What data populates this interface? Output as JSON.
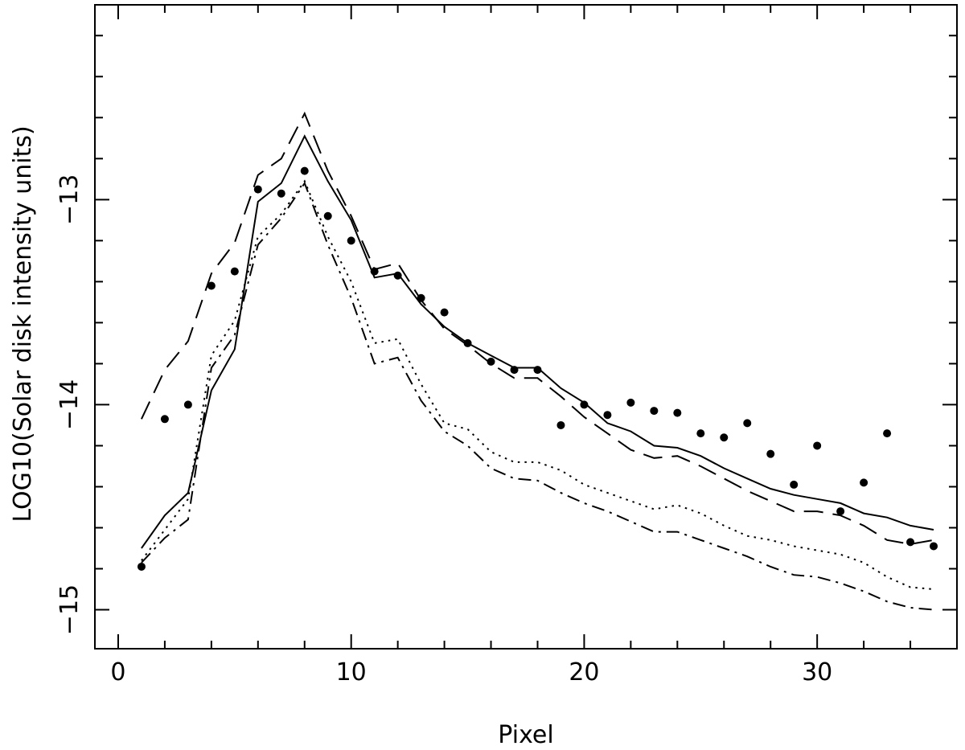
{
  "chart_data": {
    "type": "line",
    "title": "",
    "xlabel": "Pixel",
    "ylabel": "LOG10(Solar disk intensity units)",
    "xlim": [
      -1,
      36
    ],
    "ylim": [
      -15.19,
      -12.05
    ],
    "xticks": [
      0,
      10,
      20,
      30
    ],
    "xtick_labels": [
      "0",
      "10",
      "20",
      "30"
    ],
    "yticks": [
      -15,
      -14,
      -13
    ],
    "ytick_labels": [
      "−15",
      "−14",
      "−13"
    ],
    "grid": false,
    "legend": "none",
    "x": [
      1,
      2,
      3,
      4,
      5,
      6,
      7,
      8,
      9,
      10,
      11,
      12,
      13,
      14,
      15,
      16,
      17,
      18,
      19,
      20,
      21,
      22,
      23,
      24,
      25,
      26,
      27,
      28,
      29,
      30,
      31,
      32,
      33,
      34,
      35
    ],
    "series": [
      {
        "style": "solid",
        "values": [
          -14.7,
          -14.54,
          -14.43,
          -13.93,
          -13.73,
          -13.01,
          -12.92,
          -12.69,
          -12.91,
          -13.1,
          -13.38,
          -13.36,
          -13.51,
          -13.62,
          -13.7,
          -13.76,
          -13.82,
          -13.82,
          -13.92,
          -13.99,
          -14.09,
          -14.13,
          -14.2,
          -14.21,
          -14.25,
          -14.31,
          -14.36,
          -14.41,
          -14.44,
          -14.46,
          -14.48,
          -14.53,
          -14.55,
          -14.59,
          -14.61
        ]
      },
      {
        "style": "dashed",
        "values": [
          -14.07,
          -13.83,
          -13.69,
          -13.36,
          -13.21,
          -12.88,
          -12.8,
          -12.58,
          -12.86,
          -13.08,
          -13.34,
          -13.31,
          -13.49,
          -13.63,
          -13.71,
          -13.8,
          -13.87,
          -13.87,
          -13.96,
          -14.06,
          -14.14,
          -14.22,
          -14.26,
          -14.25,
          -14.3,
          -14.36,
          -14.42,
          -14.47,
          -14.52,
          -14.52,
          -14.54,
          -14.59,
          -14.66,
          -14.68,
          -14.66
        ]
      },
      {
        "style": "dotted",
        "values": [
          -14.76,
          -14.61,
          -14.46,
          -13.76,
          -13.59,
          -13.18,
          -13.07,
          -12.91,
          -13.18,
          -13.4,
          -13.7,
          -13.68,
          -13.9,
          -14.09,
          -14.12,
          -14.23,
          -14.28,
          -14.28,
          -14.32,
          -14.39,
          -14.43,
          -14.47,
          -14.51,
          -14.49,
          -14.53,
          -14.59,
          -14.64,
          -14.66,
          -14.69,
          -14.71,
          -14.73,
          -14.77,
          -14.84,
          -14.89,
          -14.9
        ]
      },
      {
        "style": "dash-dot",
        "values": [
          -14.77,
          -14.65,
          -14.56,
          -13.82,
          -13.66,
          -13.22,
          -13.09,
          -12.92,
          -13.22,
          -13.48,
          -13.8,
          -13.77,
          -13.98,
          -14.13,
          -14.2,
          -14.31,
          -14.36,
          -14.37,
          -14.43,
          -14.48,
          -14.52,
          -14.57,
          -14.62,
          -14.62,
          -14.66,
          -14.7,
          -14.74,
          -14.79,
          -14.83,
          -14.84,
          -14.87,
          -14.91,
          -14.96,
          -14.99,
          -15.0
        ]
      },
      {
        "style": "points",
        "values": [
          -14.79,
          -14.07,
          -14.0,
          -13.42,
          -13.35,
          -12.95,
          -12.97,
          -12.86,
          -13.08,
          -13.2,
          -13.35,
          -13.37,
          -13.48,
          -13.55,
          -13.7,
          -13.79,
          -13.83,
          -13.83,
          -14.1,
          -14.0,
          -14.05,
          -13.99,
          -14.03,
          -14.04,
          -14.14,
          -14.16,
          -14.09,
          -14.24,
          -14.39,
          -14.2,
          -14.52,
          -14.38,
          -14.14,
          -14.67,
          -14.69
        ]
      }
    ]
  }
}
